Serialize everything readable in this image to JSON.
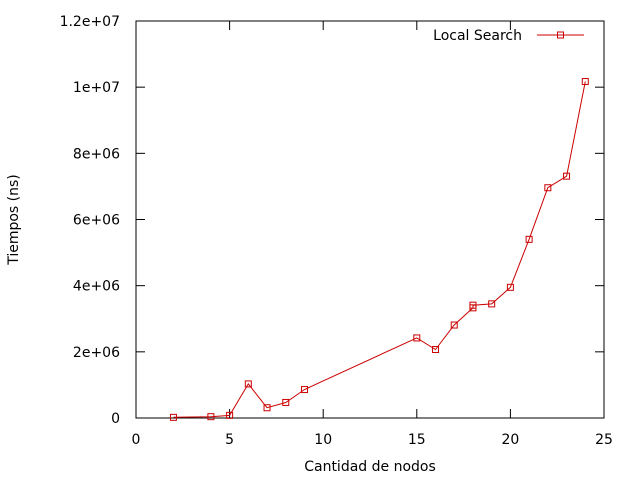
{
  "chart_data": {
    "type": "line",
    "title": "",
    "xlabel": "Cantidad de nodos",
    "ylabel": "Tiempos (ns)",
    "xlim": [
      0,
      25
    ],
    "ylim": [
      0,
      12000000
    ],
    "xticks": [
      0,
      5,
      10,
      15,
      20,
      25
    ],
    "xtick_labels": [
      "0",
      "5",
      "10",
      "15",
      "20",
      "25"
    ],
    "yticks": [
      0,
      2000000,
      4000000,
      6000000,
      8000000,
      10000000,
      12000000
    ],
    "ytick_labels": [
      "0",
      "2e+06",
      "4e+06",
      "6e+06",
      "8e+06",
      "1e+07",
      "1.2e+07"
    ],
    "grid": false,
    "legend_position": "top-right",
    "series": [
      {
        "name": "Local Search",
        "color": "#cc0000",
        "marker": "square",
        "x": [
          2,
          4,
          5,
          6,
          7,
          8,
          9,
          15,
          16,
          17,
          18,
          18,
          19,
          20,
          21,
          22,
          23,
          24
        ],
        "y": [
          20000,
          40000,
          80000,
          1030000,
          310000,
          470000,
          860000,
          2420000,
          2070000,
          2810000,
          3330000,
          3410000,
          3450000,
          3950000,
          5400000,
          6960000,
          7310000,
          10170000
        ]
      }
    ]
  }
}
